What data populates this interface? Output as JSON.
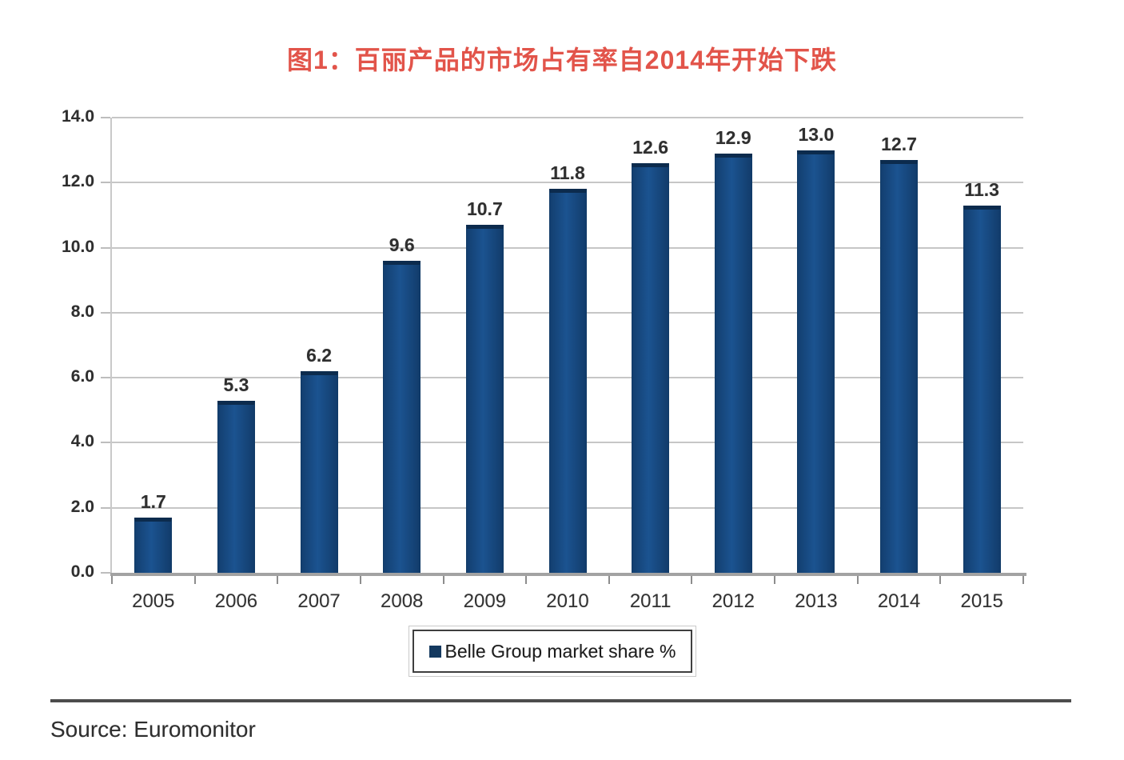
{
  "page": {
    "title": "图1：百丽产品的市场占有率自2014年开始下跌",
    "source": "Source: Euromonitor"
  },
  "chart_data": {
    "type": "bar",
    "title": "图1：百丽产品的市场占有率自2014年开始下跌",
    "categories": [
      "2005",
      "2006",
      "2007",
      "2008",
      "2009",
      "2010",
      "2011",
      "2012",
      "2013",
      "2014",
      "2015"
    ],
    "series": [
      {
        "name": "Belle Group market share %",
        "values": [
          1.7,
          5.3,
          6.2,
          9.6,
          10.7,
          11.8,
          12.6,
          12.9,
          13.0,
          12.7,
          11.3
        ]
      }
    ],
    "value_labels": [
      "1.7",
      "5.3",
      "6.2",
      "9.6",
      "10.7",
      "11.8",
      "12.6",
      "12.9",
      "13.0",
      "12.7",
      "11.3"
    ],
    "yticks": [
      "0.0",
      "2.0",
      "4.0",
      "6.0",
      "8.0",
      "10.0",
      "12.0",
      "14.0"
    ],
    "ylim": [
      0,
      14
    ],
    "xlabel": "",
    "ylabel": "",
    "grid": "horizontal",
    "legend": {
      "position": "bottom",
      "label": "Belle Group market share %"
    }
  },
  "colors": {
    "title": "#e2544a",
    "bar": "#16477c",
    "bar_cap": "#0c2b4d",
    "legend_swatch": "#14395f",
    "gridline": "#c6c6c6",
    "axis": "#a2a2a2",
    "rule": "#4c4c4c",
    "text": "#2e2e2e"
  }
}
